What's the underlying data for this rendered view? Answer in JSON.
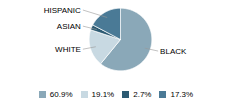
{
  "chart_data": {
    "type": "pie",
    "categories": [
      "BLACK",
      "WHITE",
      "ASIAN",
      "HISPANIC"
    ],
    "values": [
      60.9,
      19.1,
      2.7,
      17.3
    ],
    "value_labels": [
      "60.9%",
      "19.1%",
      "2.7%",
      "17.3%"
    ],
    "colors": [
      "#8aa8b8",
      "#c8d9e2",
      "#2c5a72",
      "#4a7a96"
    ],
    "legend": "bottom"
  }
}
